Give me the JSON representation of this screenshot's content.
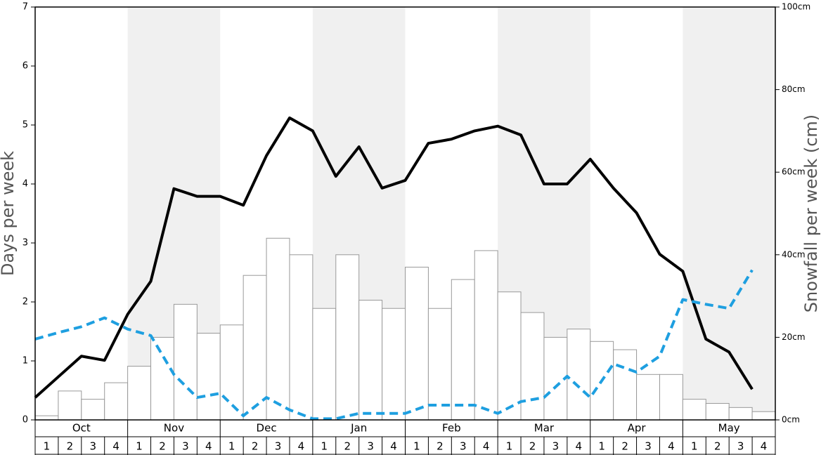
{
  "chart_data": {
    "type": "combo",
    "ylabel": "Days per week",
    "y2label": "Snowfall per week (cm)",
    "months": [
      "Oct",
      "Nov",
      "Dec",
      "Jan",
      "Feb",
      "Mar",
      "Apr",
      "May"
    ],
    "shaded_months": [
      1,
      3,
      5,
      7
    ],
    "categories": [
      "1",
      "2",
      "3",
      "4",
      "1",
      "2",
      "3",
      "4",
      "1",
      "2",
      "3",
      "4",
      "1",
      "2",
      "3",
      "4",
      "1",
      "2",
      "3",
      "4",
      "1",
      "2",
      "3",
      "4",
      "1",
      "2",
      "3",
      "4",
      "1",
      "2",
      "3",
      "4"
    ],
    "ylim": [
      0,
      7
    ],
    "yticks": [
      0,
      1,
      2,
      3,
      4,
      5,
      6,
      7
    ],
    "y2lim": [
      0,
      100
    ],
    "y2ticks": [
      {
        "value": 0,
        "label": "0cm"
      },
      {
        "value": 20,
        "label": "20cm"
      },
      {
        "value": 40,
        "label": "40cm"
      },
      {
        "value": 60,
        "label": "60cm"
      },
      {
        "value": 80,
        "label": "80cm"
      },
      {
        "value": 100,
        "label": "100cm"
      }
    ],
    "series": [
      {
        "type": "bar",
        "axis": "y2",
        "color": "#ffffff",
        "stroke": "#999999",
        "values": [
          1,
          7,
          5,
          9,
          13,
          20,
          28,
          21,
          23,
          35,
          44,
          40,
          27,
          40,
          29,
          27,
          37,
          27,
          34,
          41,
          31,
          26,
          20,
          22,
          19,
          17,
          11,
          11,
          5,
          4,
          3,
          2
        ]
      },
      {
        "type": "line",
        "color": "#000000",
        "dashed": false,
        "values": [
          0.38,
          0.73,
          1.08,
          1.01,
          1.79,
          2.35,
          3.92,
          3.79,
          3.79,
          3.64,
          4.48,
          5.12,
          4.9,
          4.13,
          4.63,
          3.93,
          4.06,
          4.69,
          4.76,
          4.9,
          4.98,
          4.83,
          4.0,
          4.0,
          4.42,
          3.93,
          3.51,
          2.81,
          2.52,
          1.37,
          1.15,
          0.52
        ]
      },
      {
        "type": "line",
        "color": "#1e9fe0",
        "dashed": true,
        "values": [
          1.37,
          1.48,
          1.58,
          1.73,
          1.54,
          1.43,
          0.77,
          0.38,
          0.45,
          0.07,
          0.38,
          0.17,
          0.02,
          0.02,
          0.11,
          0.11,
          0.11,
          0.25,
          0.25,
          0.25,
          0.11,
          0.31,
          0.38,
          0.74,
          0.38,
          0.95,
          0.81,
          1.08,
          2.04,
          1.96,
          1.89,
          2.54
        ]
      }
    ]
  }
}
